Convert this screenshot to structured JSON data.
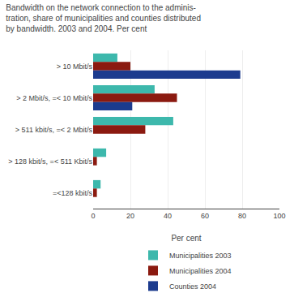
{
  "chart_data": {
    "type": "bar",
    "orientation": "horizontal",
    "title": "Bandwidth on the network connection to the adminis-\ntration, share of municipalities and counties distributed\nby bandwidth. 2003 and 2004. Per cent",
    "categories": [
      "> 10 Mbit/s",
      "> 2 Mbit/s, =< 10 Mbit/s",
      "> 511 kbit/s, =< 2 Mbit/s",
      "> 128 kbit/s, =< 511 Kbit/s",
      "=<128 kbit/s"
    ],
    "series": [
      {
        "name": "Municipalities 2003",
        "color": "#3db8ac",
        "values": [
          13,
          33,
          43,
          7,
          4
        ]
      },
      {
        "name": "Municipalities 2004",
        "color": "#8b1a10",
        "values": [
          20,
          45,
          28,
          2,
          2
        ]
      },
      {
        "name": "Counties 2004",
        "color": "#1c3b8e",
        "values": [
          79,
          21,
          0,
          0,
          0
        ]
      }
    ],
    "xlabel": "Per cent",
    "xlim": [
      0,
      100
    ],
    "xticks": [
      0,
      20,
      40,
      60,
      80,
      100
    ],
    "grid": true,
    "legend": "bottom"
  }
}
